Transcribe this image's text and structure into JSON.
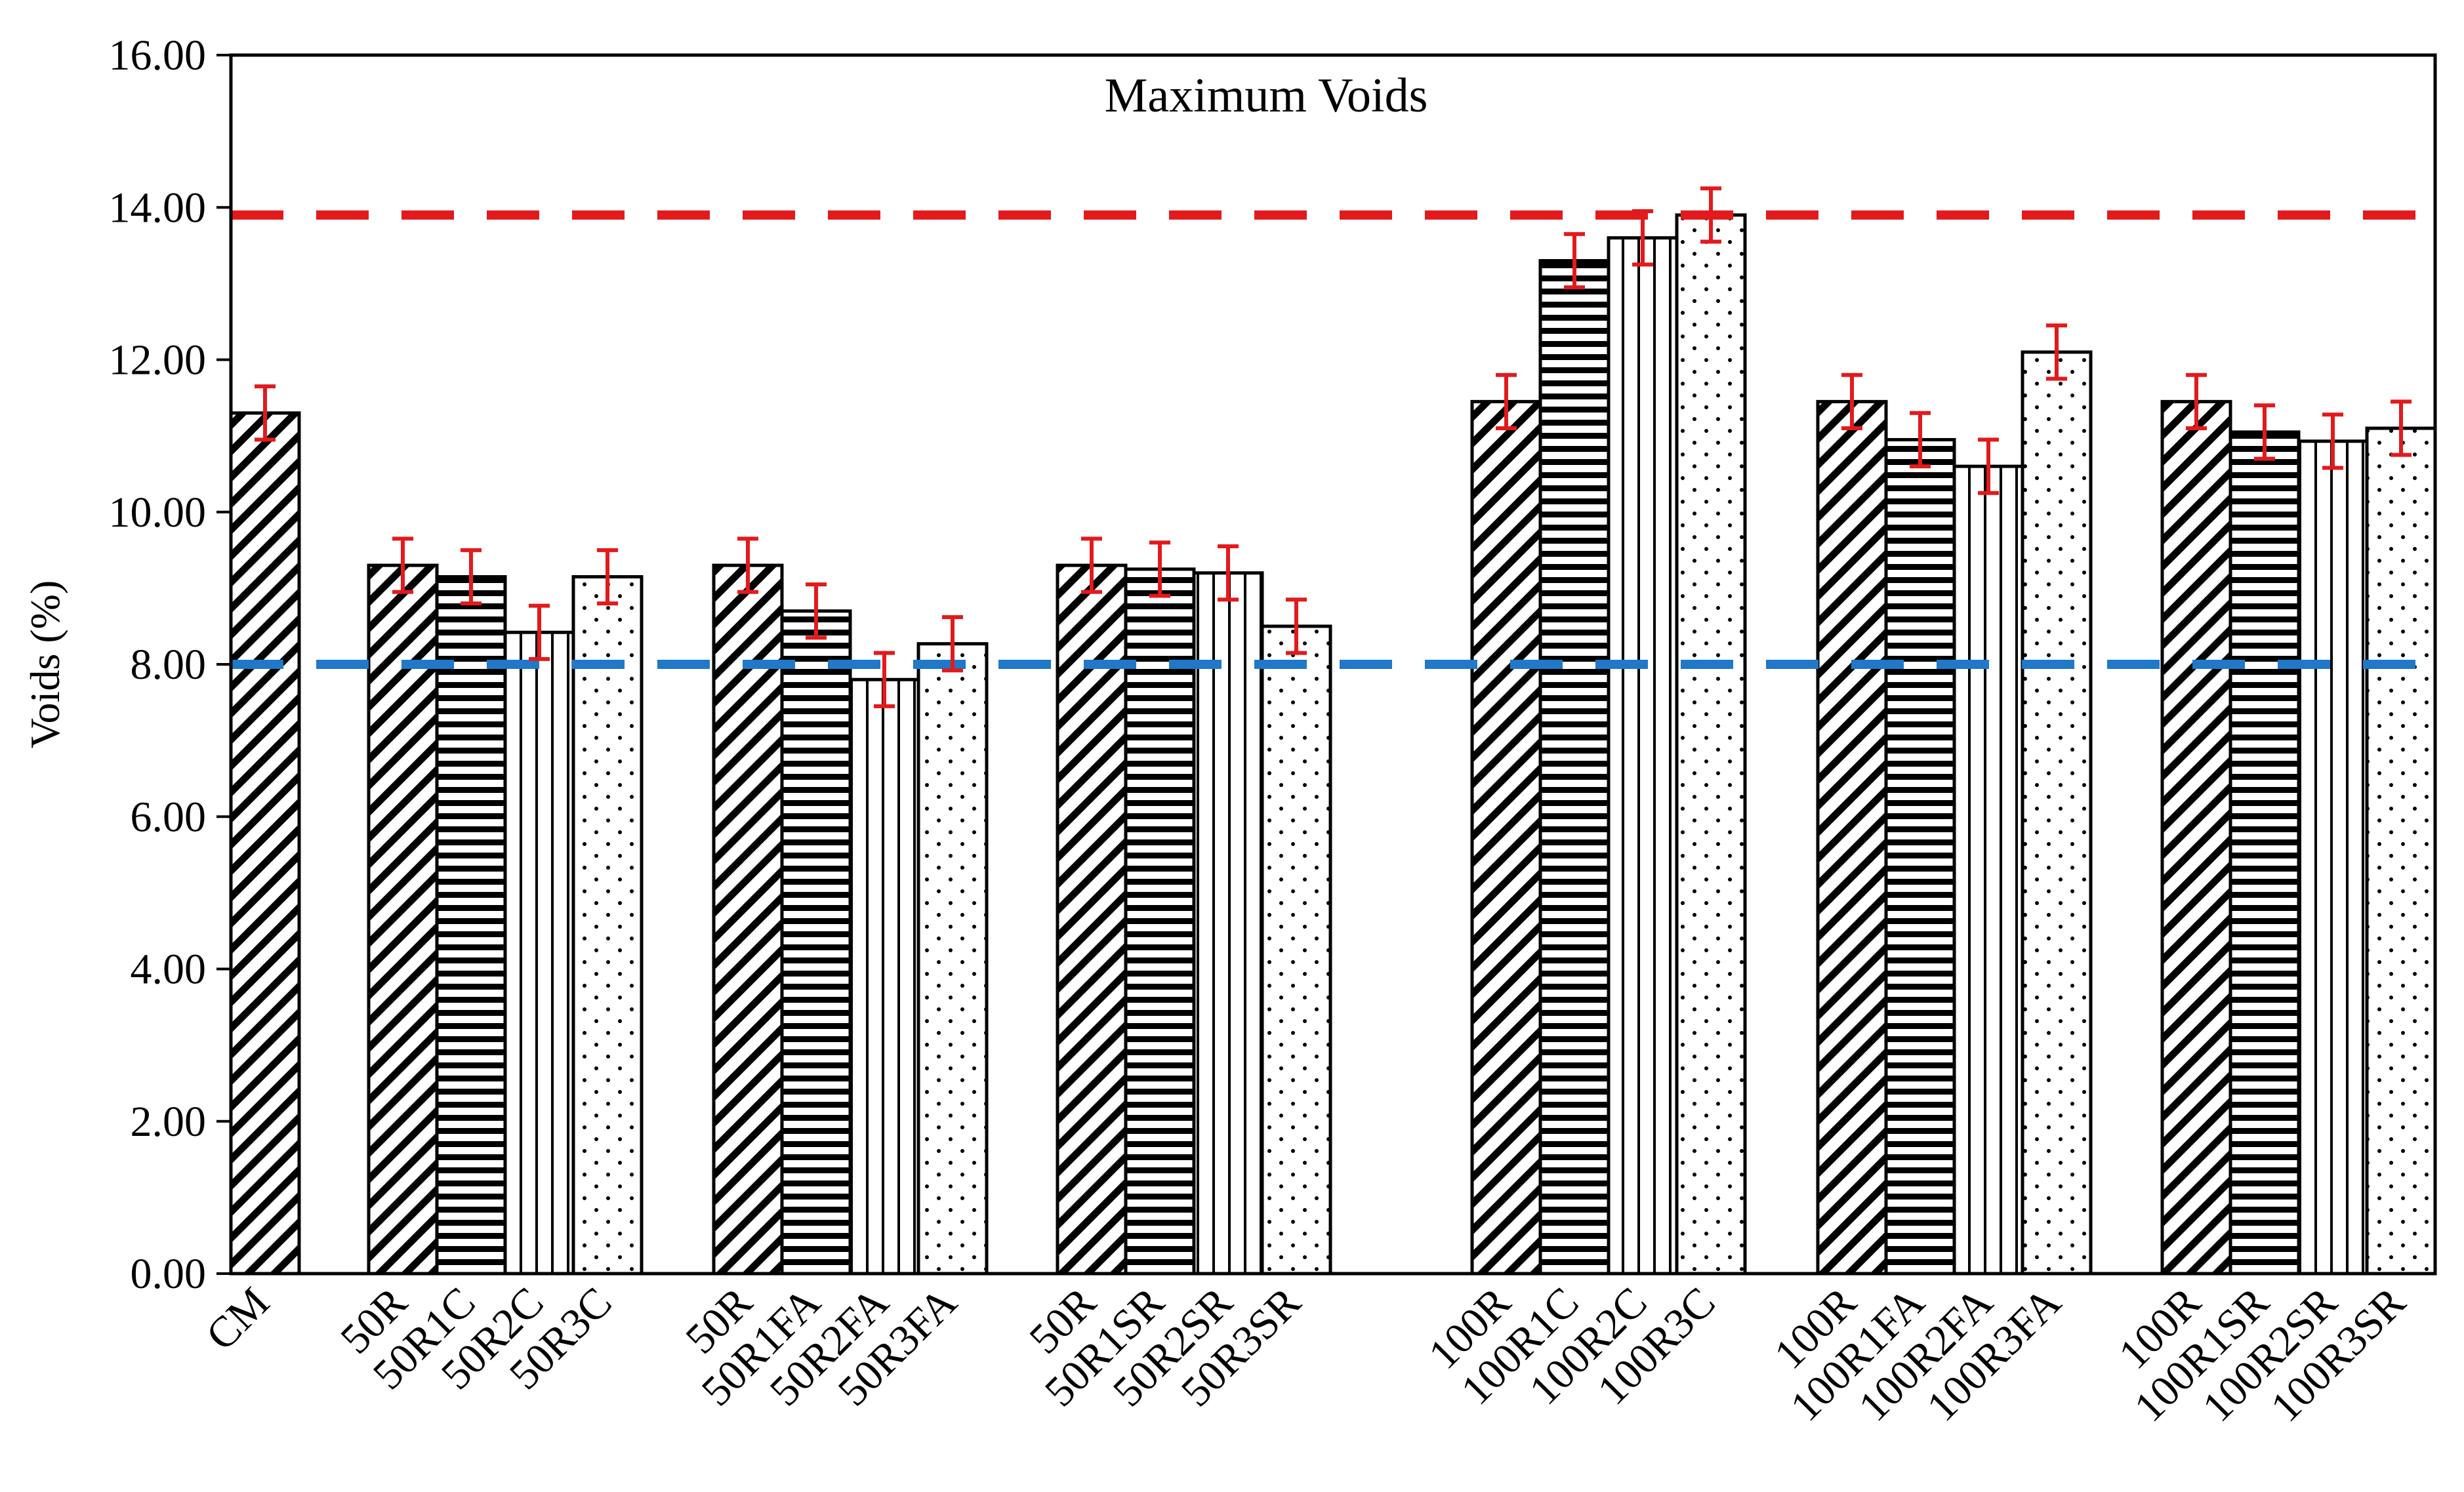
{
  "chart_data": {
    "type": "bar",
    "title": "Maximum Voids",
    "ylabel": "Voids (%)",
    "xlabel": "",
    "ylim": [
      0,
      16
    ],
    "yticks": [
      "0.00",
      "2.00",
      "4.00",
      "6.00",
      "8.00",
      "10.00",
      "12.00",
      "14.00",
      "16.00"
    ],
    "grid": false,
    "reference_lines": [
      {
        "name": "upper-limit",
        "value": 13.9,
        "color": "#e31a1c",
        "style": "dashed"
      },
      {
        "name": "lower-limit",
        "value": 8.0,
        "color": "#1f78c8",
        "style": "dashed"
      }
    ],
    "error_bar_color": "#e31a1c",
    "groups": [
      {
        "bars": [
          {
            "label": "CM",
            "value": 11.3,
            "error": 0.35,
            "pattern": "diagonal"
          }
        ]
      },
      {
        "bars": [
          {
            "label": "50R",
            "value": 9.3,
            "error": 0.35,
            "pattern": "diagonal"
          },
          {
            "label": "50R1C",
            "value": 9.15,
            "error": 0.35,
            "pattern": "horizontal"
          },
          {
            "label": "50R2C",
            "value": 8.42,
            "error": 0.35,
            "pattern": "vertical"
          },
          {
            "label": "50R3C",
            "value": 9.15,
            "error": 0.35,
            "pattern": "dots"
          }
        ]
      },
      {
        "bars": [
          {
            "label": "50R",
            "value": 9.3,
            "error": 0.35,
            "pattern": "diagonal"
          },
          {
            "label": "50R1FA",
            "value": 8.7,
            "error": 0.35,
            "pattern": "horizontal"
          },
          {
            "label": "50R2FA",
            "value": 7.8,
            "error": 0.35,
            "pattern": "vertical"
          },
          {
            "label": "50R3FA",
            "value": 8.27,
            "error": 0.35,
            "pattern": "dots"
          }
        ]
      },
      {
        "bars": [
          {
            "label": "50R",
            "value": 9.3,
            "error": 0.35,
            "pattern": "diagonal"
          },
          {
            "label": "50R1SR",
            "value": 9.25,
            "error": 0.35,
            "pattern": "horizontal"
          },
          {
            "label": "50R2SR",
            "value": 9.2,
            "error": 0.35,
            "pattern": "vertical"
          },
          {
            "label": "50R3SR",
            "value": 8.5,
            "error": 0.35,
            "pattern": "dots"
          }
        ]
      },
      {
        "bars": [
          {
            "label": "100R",
            "value": 11.45,
            "error": 0.35,
            "pattern": "diagonal"
          },
          {
            "label": "100R1C",
            "value": 13.3,
            "error": 0.35,
            "pattern": "horizontal"
          },
          {
            "label": "100R2C",
            "value": 13.6,
            "error": 0.35,
            "pattern": "vertical"
          },
          {
            "label": "100R3C",
            "value": 13.9,
            "error": 0.35,
            "pattern": "dots"
          }
        ]
      },
      {
        "bars": [
          {
            "label": "100R",
            "value": 11.45,
            "error": 0.35,
            "pattern": "diagonal"
          },
          {
            "label": "100R1FA",
            "value": 10.95,
            "error": 0.35,
            "pattern": "horizontal"
          },
          {
            "label": "100R2FA",
            "value": 10.6,
            "error": 0.35,
            "pattern": "vertical"
          },
          {
            "label": "100R3FA",
            "value": 12.1,
            "error": 0.35,
            "pattern": "dots"
          }
        ]
      },
      {
        "bars": [
          {
            "label": "100R",
            "value": 11.45,
            "error": 0.35,
            "pattern": "diagonal"
          },
          {
            "label": "100R1SR",
            "value": 11.05,
            "error": 0.35,
            "pattern": "horizontal"
          },
          {
            "label": "100R2SR",
            "value": 10.93,
            "error": 0.35,
            "pattern": "vertical"
          },
          {
            "label": "100R3SR",
            "value": 11.1,
            "error": 0.35,
            "pattern": "dots"
          }
        ]
      }
    ]
  }
}
